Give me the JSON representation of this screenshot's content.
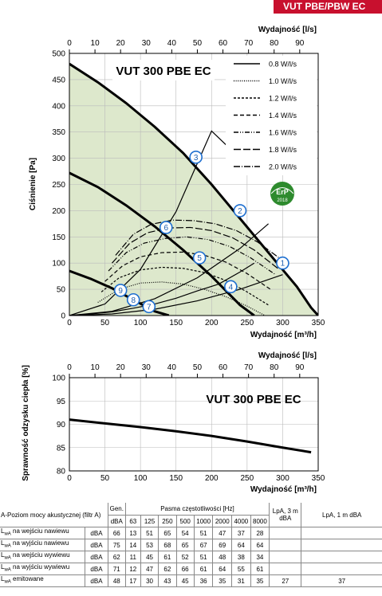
{
  "header_tag": "VUT PBE/PBW EC",
  "chart_data": [
    {
      "type": "line",
      "title": "VUT 300 PBE EC",
      "xlabel": "Wydajność [m³/h]",
      "x2label": "Wydajność [l/s]",
      "ylabel": "Ciśnienie [Pa]",
      "xlim": [
        0,
        350
      ],
      "ylim": [
        0,
        500
      ],
      "x_ticks": [
        0,
        50,
        100,
        150,
        200,
        250,
        300,
        350
      ],
      "x2_ticks": [
        0,
        10,
        20,
        30,
        40,
        50,
        60,
        70,
        80,
        90
      ],
      "y_ticks": [
        0,
        50,
        100,
        150,
        200,
        250,
        300,
        350,
        400,
        450,
        500
      ],
      "grid": true,
      "legend_position": "top-right",
      "series": [
        {
          "name": "0.8 W/l/s",
          "style": "solid",
          "x": [
            0,
            30,
            60,
            90,
            120,
            150,
            180,
            210,
            240,
            260
          ],
          "y": [
            0,
            3,
            7,
            14,
            22,
            33,
            47,
            60,
            83,
            100
          ]
        },
        {
          "name": "1.0 W/l/s",
          "style": "dotted",
          "x": [
            40,
            70,
            100,
            130,
            160,
            190,
            220,
            250,
            275
          ],
          "y": [
            25,
            50,
            62,
            64,
            60,
            50,
            36,
            18,
            0
          ]
        },
        {
          "name": "1.2 W/l/s",
          "style": "dash-short",
          "x": [
            45,
            70,
            100,
            130,
            160,
            190,
            220,
            250,
            280
          ],
          "y": [
            45,
            72,
            87,
            92,
            90,
            82,
            67,
            45,
            20
          ]
        },
        {
          "name": "1.4 W/l/s",
          "style": "dash",
          "x": [
            50,
            75,
            100,
            130,
            160,
            190,
            220,
            250,
            285
          ],
          "y": [
            65,
            95,
            112,
            120,
            121,
            115,
            102,
            80,
            48
          ]
        },
        {
          "name": "1.6 W/l/s",
          "style": "dash-dot-dot",
          "x": [
            55,
            80,
            105,
            135,
            165,
            195,
            225,
            255,
            290
          ],
          "y": [
            85,
            120,
            138,
            147,
            150,
            145,
            132,
            110,
            78
          ]
        },
        {
          "name": "1.8 W/l/s",
          "style": "long-dash",
          "x": [
            60,
            85,
            110,
            140,
            170,
            200,
            230,
            260,
            295
          ],
          "y": [
            100,
            138,
            158,
            167,
            168,
            162,
            148,
            125,
            88
          ]
        },
        {
          "name": "2.0 W/l/s",
          "style": "dash-dot",
          "x": [
            65,
            90,
            115,
            145,
            175,
            205,
            235,
            265,
            300
          ],
          "y": [
            115,
            155,
            174,
            182,
            181,
            175,
            162,
            140,
            105
          ]
        },
        {
          "name": "",
          "style": "fan-max",
          "x": [
            0,
            40,
            80,
            120,
            160,
            200,
            240,
            280,
            320,
            340,
            350
          ],
          "y": [
            480,
            445,
            405,
            360,
            310,
            250,
            185,
            120,
            55,
            15,
            0
          ]
        },
        {
          "name": "",
          "style": "fan-mid",
          "x": [
            0,
            40,
            80,
            120,
            160,
            200,
            240,
            260
          ],
          "y": [
            272,
            245,
            210,
            170,
            125,
            75,
            20,
            0
          ]
        },
        {
          "name": "",
          "style": "fan-low",
          "x": [
            0,
            30,
            60,
            90,
            120,
            140
          ],
          "y": [
            85,
            70,
            52,
            30,
            8,
            0
          ]
        },
        {
          "name": "",
          "style": "system",
          "x": [
            0,
            60,
            120,
            180,
            240,
            300
          ],
          "y": [
            0,
            3,
            12,
            28,
            50,
            78
          ]
        },
        {
          "name": "",
          "style": "system",
          "x": [
            0,
            60,
            120,
            180,
            240,
            280
          ],
          "y": [
            0,
            8,
            32,
            72,
            128,
            175
          ]
        },
        {
          "name": "",
          "style": "system",
          "x": [
            0,
            50,
            100,
            150,
            200,
            240
          ],
          "y": [
            0,
            22,
            88,
            198,
            352,
            300
          ]
        }
      ],
      "operating_points": [
        {
          "label": "1",
          "x": 300,
          "y": 100
        },
        {
          "label": "2",
          "x": 240,
          "y": 200
        },
        {
          "label": "3",
          "x": 178,
          "y": 302
        },
        {
          "label": "4",
          "x": 227,
          "y": 55
        },
        {
          "label": "5",
          "x": 183,
          "y": 110
        },
        {
          "label": "6",
          "x": 136,
          "y": 168
        },
        {
          "label": "7",
          "x": 112,
          "y": 17
        },
        {
          "label": "8",
          "x": 90,
          "y": 30
        },
        {
          "label": "9",
          "x": 72,
          "y": 48
        }
      ],
      "erp_badge": {
        "text": "ErP",
        "year": "2018"
      }
    },
    {
      "type": "line",
      "title": "VUT 300 PBE EC",
      "xlabel": "Wydajność [m³/h]",
      "x2label": "Wydajność [l/s]",
      "ylabel": "Sprawność odzysku ciepła [%]",
      "xlim": [
        0,
        350
      ],
      "ylim": [
        80,
        100
      ],
      "x_ticks": [
        0,
        50,
        100,
        150,
        200,
        250,
        300,
        350
      ],
      "x2_ticks": [
        0,
        10,
        20,
        30,
        40,
        50,
        60,
        70,
        80,
        90
      ],
      "y_ticks": [
        80,
        85,
        90,
        95,
        100
      ],
      "grid": true,
      "series": [
        {
          "name": "",
          "x": [
            0,
            50,
            100,
            150,
            200,
            250,
            300,
            340
          ],
          "y": [
            91,
            90.2,
            89.4,
            88.5,
            87.5,
            86.3,
            85.0,
            84.0
          ]
        }
      ]
    }
  ],
  "noise_table": {
    "title": "A-Poziom mocy akustycznej (filtr A)",
    "gen_header": "Gen.",
    "bands_header": "Pasma częstotliwości [Hz]",
    "lpa3_header": "LpA, 3 m dBA",
    "lpa1_header": "LpA, 1 m dBA",
    "unit_row": [
      "dBA",
      "63",
      "125",
      "250",
      "500",
      "1000",
      "2000",
      "4000",
      "8000"
    ],
    "rows": [
      {
        "sym": "L",
        "sub": "wA",
        "label": "na wejściu nawiewu",
        "unit": "dBA",
        "values": [
          "66",
          "13",
          "51",
          "65",
          "54",
          "51",
          "47",
          "37",
          "28"
        ],
        "lpa3": "",
        "lpa1": ""
      },
      {
        "sym": "L",
        "sub": "wA",
        "label": "na wyjściu nawiewu",
        "unit": "dBA",
        "values": [
          "75",
          "14",
          "53",
          "68",
          "65",
          "67",
          "69",
          "64",
          "64"
        ],
        "lpa3": "",
        "lpa1": ""
      },
      {
        "sym": "L",
        "sub": "wA",
        "label": "na wejściu wywiewu",
        "unit": "dBA",
        "values": [
          "62",
          "11",
          "45",
          "61",
          "52",
          "51",
          "48",
          "38",
          "34"
        ],
        "lpa3": "",
        "lpa1": ""
      },
      {
        "sym": "L",
        "sub": "wA",
        "label": "na wyjściu wywiewu",
        "unit": "dBA",
        "values": [
          "71",
          "12",
          "47",
          "62",
          "66",
          "61",
          "64",
          "55",
          "61"
        ],
        "lpa3": "",
        "lpa1": ""
      },
      {
        "sym": "L",
        "sub": "wA",
        "label": "emitowane",
        "unit": "dBA",
        "values": [
          "48",
          "17",
          "30",
          "43",
          "45",
          "36",
          "35",
          "31",
          "35"
        ],
        "lpa3": "27",
        "lpa1": "37"
      }
    ]
  }
}
